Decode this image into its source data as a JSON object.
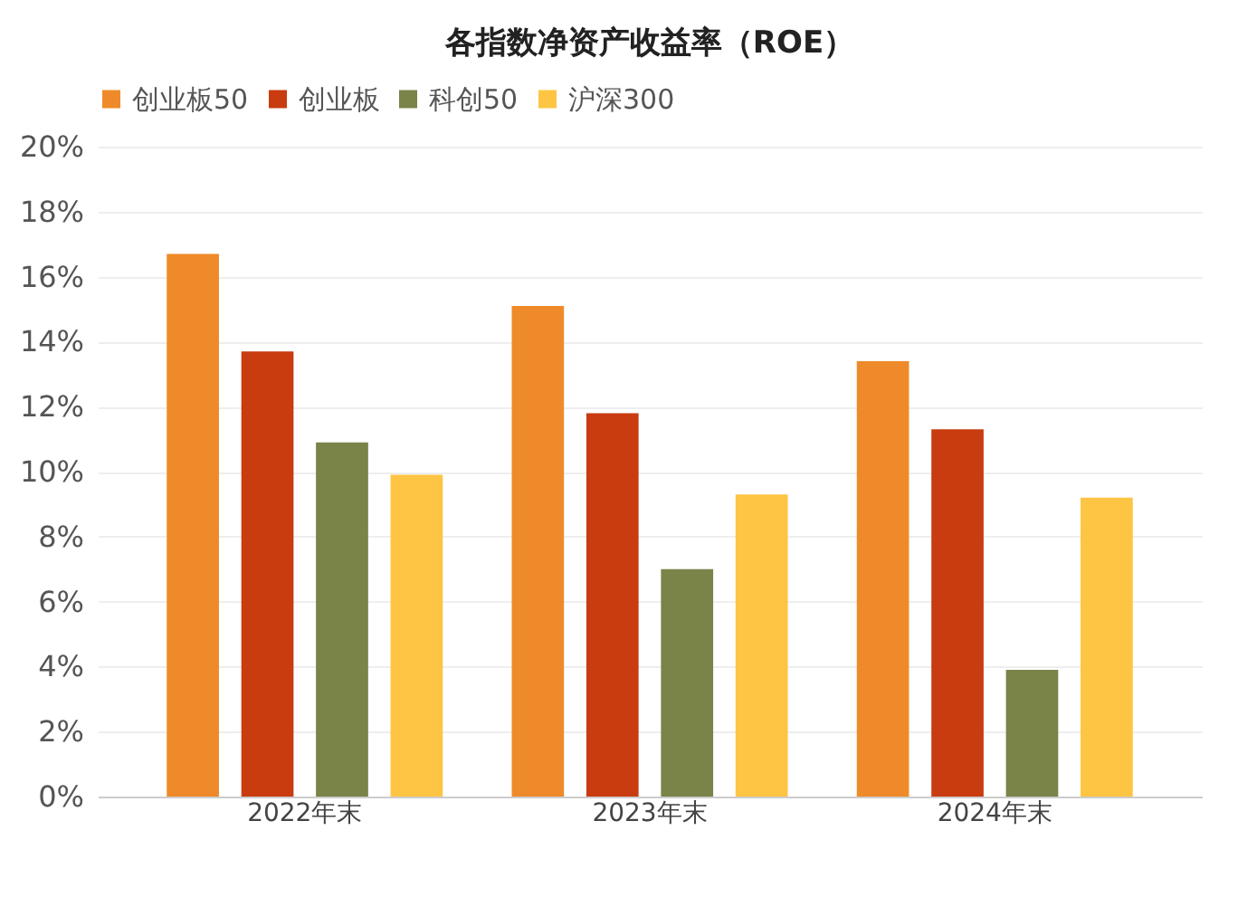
{
  "chart_data": {
    "type": "bar",
    "title": "各指数净资产收益率（ROE）",
    "categories": [
      "2022年末",
      "2023年末",
      "2024年末"
    ],
    "series": [
      {
        "name": "创业板50",
        "color": "#ef8a2a",
        "values": [
          16.7,
          15.1,
          13.4
        ]
      },
      {
        "name": "创业板",
        "color": "#c83c10",
        "values": [
          13.7,
          11.8,
          11.3
        ]
      },
      {
        "name": "科创50",
        "color": "#7a8348",
        "values": [
          10.9,
          7.0,
          3.9
        ]
      },
      {
        "name": "沪深300",
        "color": "#fec443",
        "values": [
          9.9,
          9.3,
          9.2
        ]
      }
    ],
    "ylim": [
      0,
      20
    ],
    "yticks": [
      {
        "value": 0,
        "label": "0%"
      },
      {
        "value": 2,
        "label": "2%"
      },
      {
        "value": 4,
        "label": "4%"
      },
      {
        "value": 6,
        "label": "6%"
      },
      {
        "value": 8,
        "label": "8%"
      },
      {
        "value": 10,
        "label": "10%"
      },
      {
        "value": 12,
        "label": "12%"
      },
      {
        "value": 14,
        "label": "14%"
      },
      {
        "value": 16,
        "label": "16%"
      },
      {
        "value": 18,
        "label": "18%"
      },
      {
        "value": 20,
        "label": "20%"
      }
    ],
    "grid": "y",
    "legend": "top"
  }
}
